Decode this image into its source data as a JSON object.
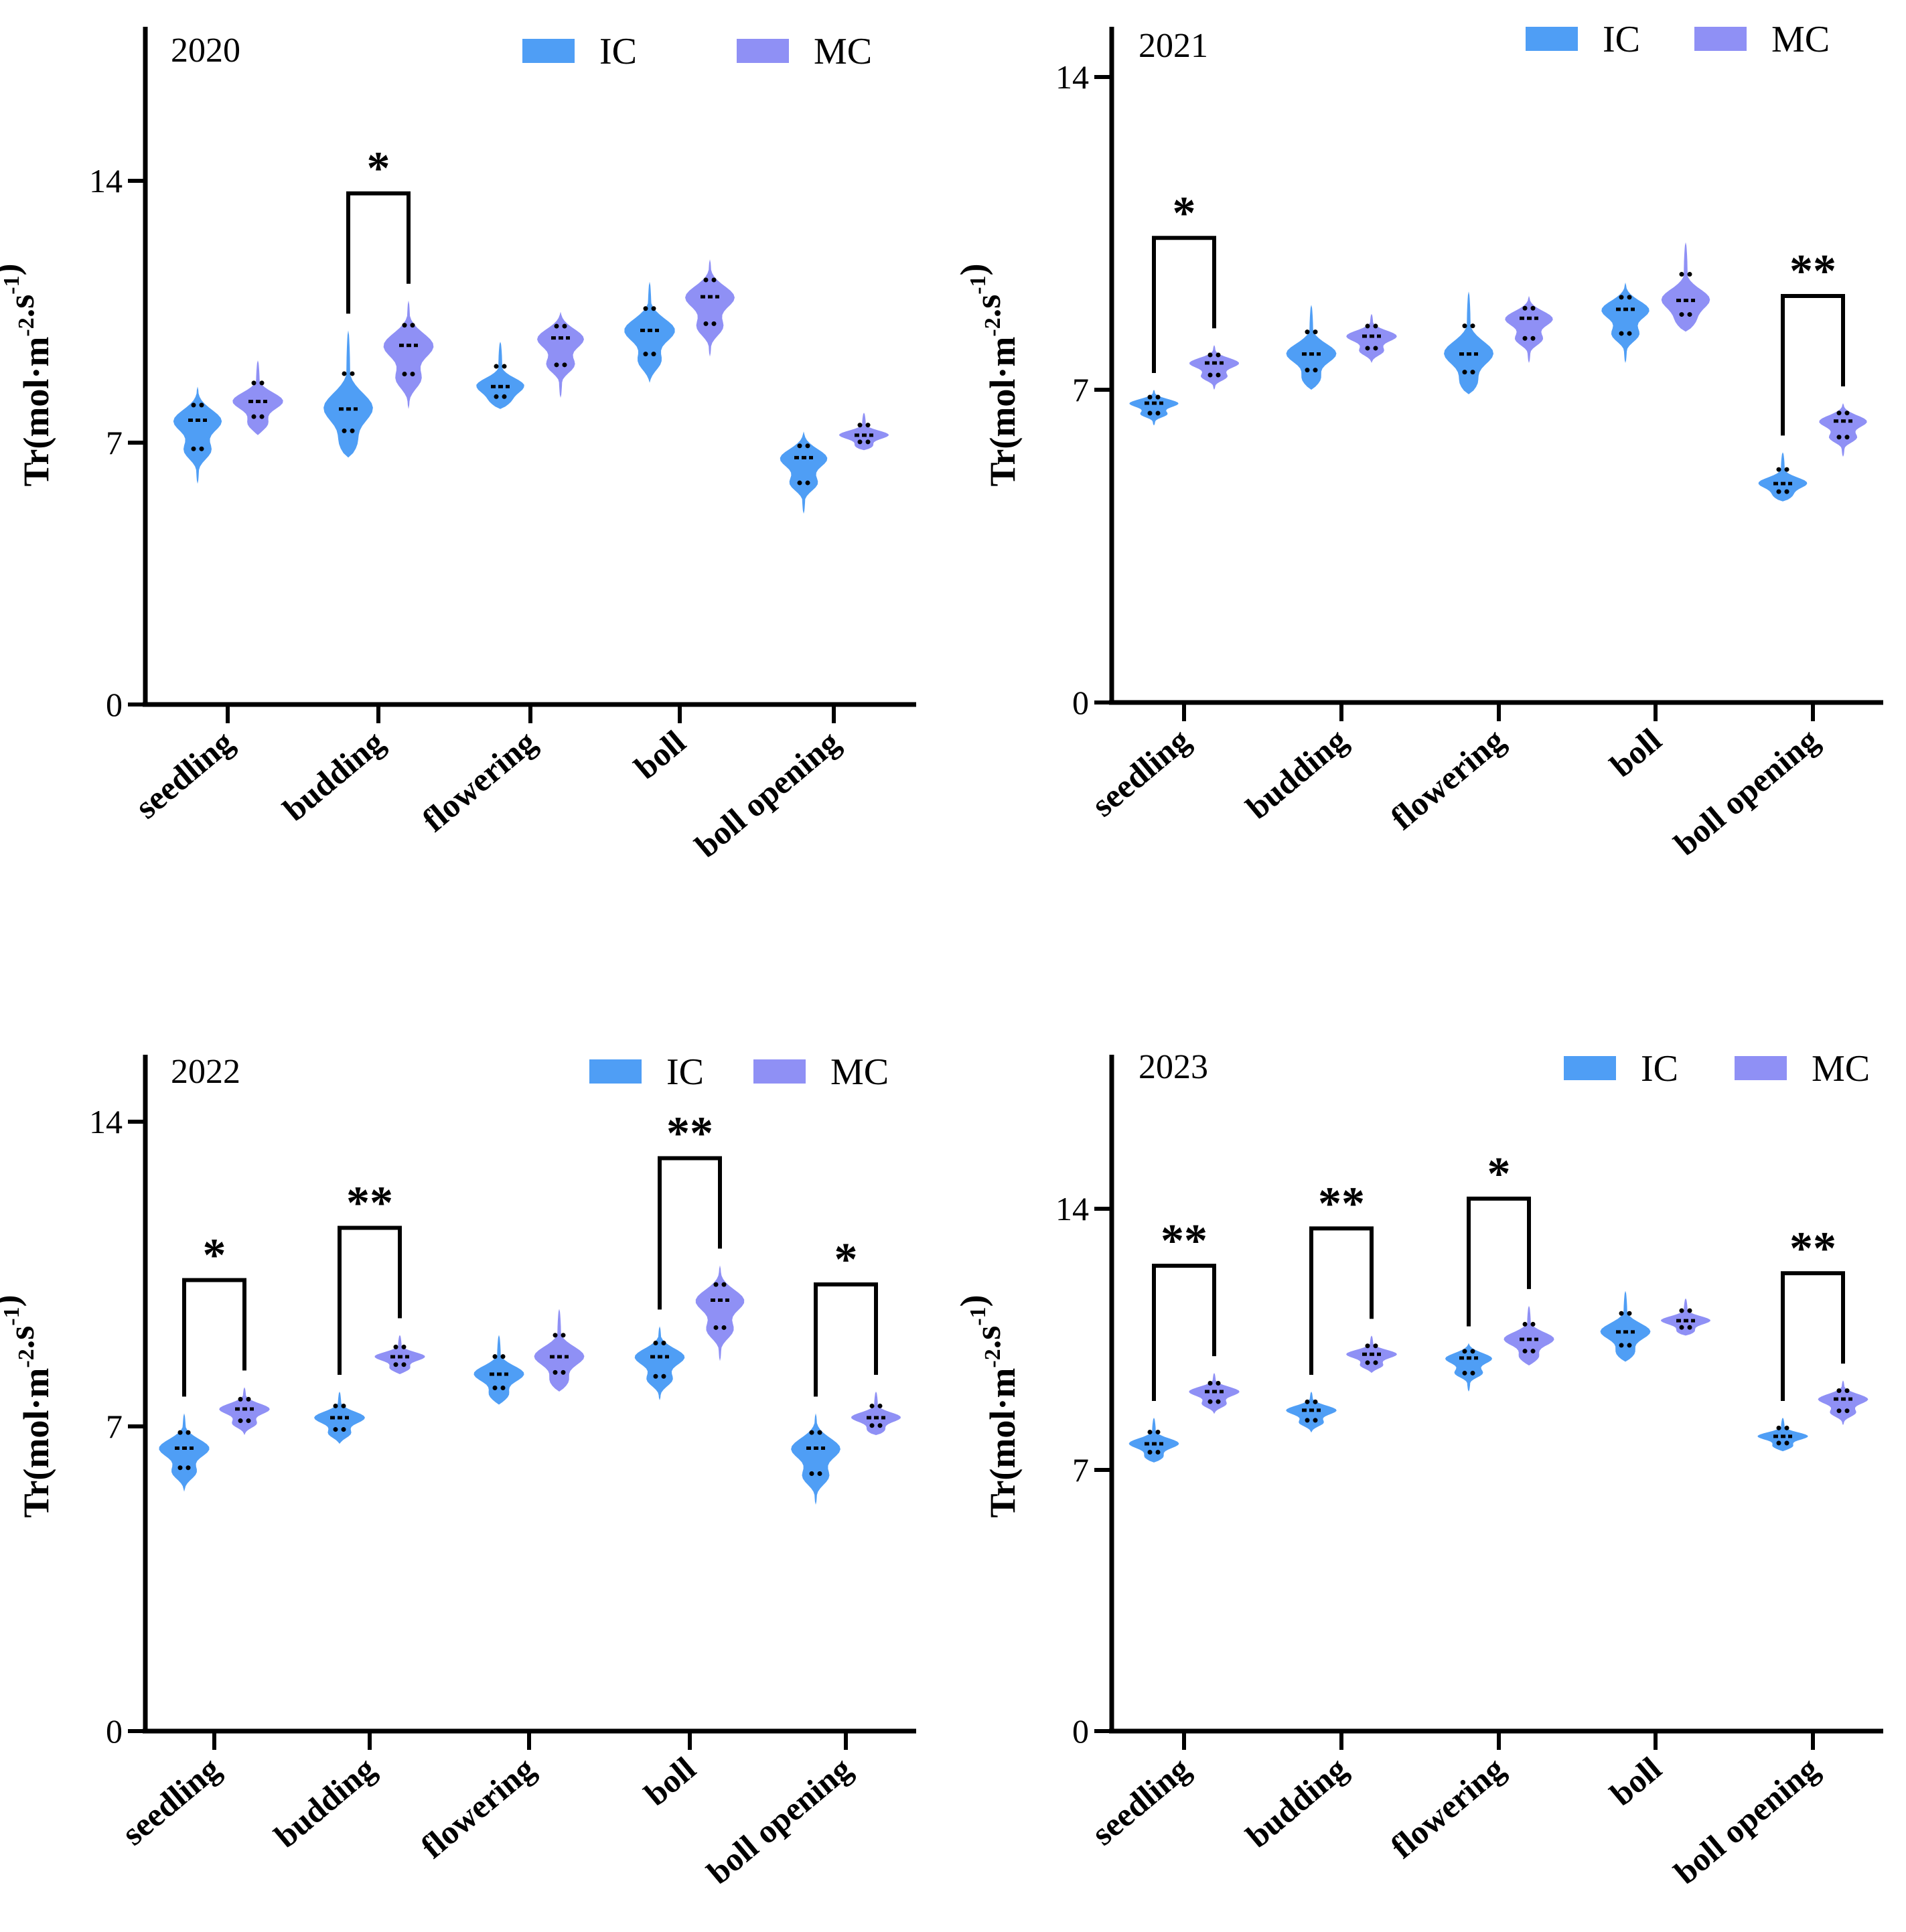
{
  "chart_data": [
    {
      "type": "violin",
      "title": "2020",
      "ylabel": {
        "base": "Tr(mol·m",
        "sup1": "-2",
        "mid": ".s",
        "sup2": "-1",
        "end": ")"
      },
      "yticks": [
        0,
        7,
        14
      ],
      "ylim": [
        0,
        18
      ],
      "categories": [
        "seedling",
        "budding",
        "flowering",
        "boll",
        "boll opening"
      ],
      "legend": [
        {
          "name": "IC",
          "color": "#4f9ef5"
        },
        {
          "name": "MC",
          "color": "#8f90f5"
        }
      ],
      "series": [
        {
          "name": "IC",
          "median": [
            7.6,
            7.9,
            8.5,
            10.0,
            6.6
          ],
          "min": [
            5.9,
            6.6,
            7.9,
            8.6,
            5.1
          ],
          "max": [
            8.5,
            10.0,
            9.7,
            11.3,
            7.3
          ]
        },
        {
          "name": "MC",
          "median": [
            8.1,
            9.6,
            9.8,
            10.9,
            7.2
          ],
          "min": [
            7.2,
            7.9,
            8.2,
            9.3,
            6.8
          ],
          "max": [
            9.2,
            10.8,
            10.5,
            11.9,
            7.8
          ]
        }
      ],
      "significance": [
        {
          "category": "budding",
          "label": "*"
        }
      ]
    },
    {
      "type": "violin",
      "title": "2021",
      "ylabel": {
        "base": "Tr(mol·m",
        "sup1": "-2",
        "mid": ".s",
        "sup2": "-1",
        "end": ")"
      },
      "yticks": [
        0,
        7,
        14
      ],
      "ylim": [
        0,
        15
      ],
      "categories": [
        "seedling",
        "budding",
        "flowering",
        "boll",
        "boll opening"
      ],
      "legend": [
        {
          "name": "IC",
          "color": "#4f9ef5"
        },
        {
          "name": "MC",
          "color": "#8f90f5"
        }
      ],
      "series": [
        {
          "name": "IC",
          "median": [
            6.7,
            7.8,
            7.8,
            8.8,
            4.9
          ],
          "min": [
            6.2,
            7.0,
            6.9,
            7.6,
            4.5
          ],
          "max": [
            7.0,
            8.9,
            9.2,
            9.4,
            5.6
          ]
        },
        {
          "name": "MC",
          "median": [
            7.6,
            8.2,
            8.6,
            9.0,
            6.3
          ],
          "min": [
            7.0,
            7.6,
            7.6,
            8.3,
            5.5
          ],
          "max": [
            8.0,
            8.7,
            9.1,
            10.3,
            6.7
          ]
        }
      ],
      "significance": [
        {
          "category": "seedling",
          "label": "*"
        },
        {
          "category": "boll opening",
          "label": "**"
        }
      ]
    },
    {
      "type": "violin",
      "title": "2022",
      "ylabel": {
        "base": "Tr(mol·m",
        "sup1": "-2",
        "mid": ".s",
        "sup2": "-1",
        "end": ")"
      },
      "yticks": [
        0,
        7,
        14
      ],
      "ylim": [
        0,
        15.5
      ],
      "categories": [
        "seedling",
        "budding",
        "flowering",
        "boll",
        "boll opening"
      ],
      "legend": [
        {
          "name": "IC",
          "color": "#4f9ef5"
        },
        {
          "name": "MC",
          "color": "#8f90f5"
        }
      ],
      "series": [
        {
          "name": "IC",
          "median": [
            6.5,
            7.2,
            8.2,
            8.6,
            6.5
          ],
          "min": [
            5.5,
            6.6,
            7.5,
            7.6,
            5.2
          ],
          "max": [
            7.3,
            7.8,
            9.1,
            9.3,
            7.3
          ]
        },
        {
          "name": "MC",
          "median": [
            7.4,
            8.6,
            8.6,
            9.9,
            7.2
          ],
          "min": [
            6.8,
            8.2,
            7.8,
            8.5,
            6.8
          ],
          "max": [
            7.9,
            9.1,
            9.7,
            10.7,
            7.8
          ]
        }
      ],
      "significance": [
        {
          "category": "seedling",
          "label": "*"
        },
        {
          "category": "budding",
          "label": "**"
        },
        {
          "category": "boll",
          "label": "**"
        },
        {
          "category": "boll opening",
          "label": "*"
        }
      ]
    },
    {
      "type": "violin",
      "title": "2023",
      "ylabel": {
        "base": "Tr(mol·m",
        "sup1": "-2",
        "mid": ".s",
        "sup2": "-1",
        "end": ")"
      },
      "yticks": [
        0,
        7,
        14
      ],
      "ylim": [
        0,
        18
      ],
      "categories": [
        "seedling",
        "budding",
        "flowering",
        "boll",
        "boll opening"
      ],
      "legend": [
        {
          "name": "IC",
          "color": "#4f9ef5"
        },
        {
          "name": "MC",
          "color": "#8f90f5"
        }
      ],
      "series": [
        {
          "name": "IC",
          "median": [
            7.7,
            8.6,
            10.0,
            10.7,
            7.9
          ],
          "min": [
            7.2,
            8.0,
            9.1,
            9.9,
            7.5
          ],
          "max": [
            8.4,
            9.1,
            10.4,
            11.8,
            8.4
          ]
        },
        {
          "name": "MC",
          "median": [
            9.1,
            10.1,
            10.5,
            11.0,
            8.9
          ],
          "min": [
            8.5,
            9.6,
            9.8,
            10.6,
            8.2
          ],
          "max": [
            9.6,
            10.6,
            11.4,
            11.6,
            9.4
          ]
        }
      ],
      "significance": [
        {
          "category": "seedling",
          "label": "**"
        },
        {
          "category": "budding",
          "label": "**"
        },
        {
          "category": "flowering",
          "label": "*"
        },
        {
          "category": "boll opening",
          "label": "**"
        }
      ]
    }
  ]
}
